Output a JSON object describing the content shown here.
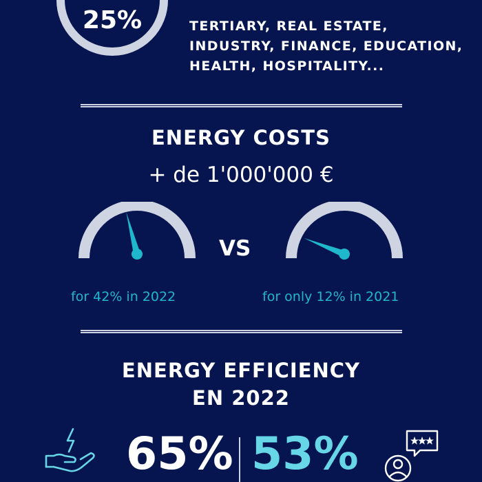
{
  "intro": {
    "ring_percent_label": "25%",
    "ring_fraction": 0.25,
    "sectors_lines": [
      "TERTIARY, REAL ESTATE,",
      "INDUSTRY, FINANCE, EDUCATION,",
      "HEALTH, HOSPITALITY..."
    ]
  },
  "energy_costs": {
    "title": "ENERGY COSTS",
    "amount": "+ de 1'000'000 €",
    "vs_label": "VS",
    "gauge_2022": {
      "caption": "for 42% in 2022",
      "value_percent": 42
    },
    "gauge_2021": {
      "caption": "for only 12% in 2021",
      "value_percent": 12
    }
  },
  "energy_efficiency": {
    "title_line1": "ENERGY EFFICIENCY",
    "title_line2": "EN 2022",
    "stat1": "65%",
    "stat2": "53%",
    "stat1_icon": "hand-lightning-icon",
    "stat2_icon": "user-rating-stars-icon"
  },
  "colors": {
    "background": "#06154f",
    "accent": "#1fb7cc",
    "accent_light": "#67d7e8",
    "gauge_track": "#cfd4e2"
  }
}
